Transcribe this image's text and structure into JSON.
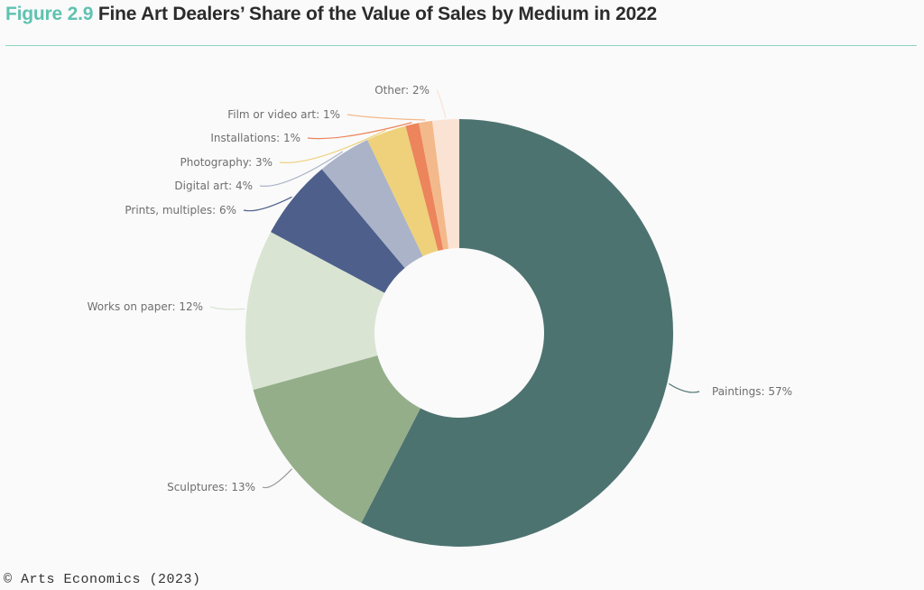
{
  "title": {
    "figure": "Figure 2.9",
    "text": "Fine Art Dealers’ Share of the Value of Sales by Medium in 2022"
  },
  "source": "© Arts Economics (2023)",
  "chart_data": {
    "type": "pie",
    "donut": true,
    "title": "Fine Art Dealers’ Share of the Value of Sales by Medium in 2022",
    "categories": [
      "Paintings",
      "Sculptures",
      "Works on paper",
      "Prints, multiples",
      "Digital art",
      "Photography",
      "Installations",
      "Film or video art",
      "Other"
    ],
    "values": [
      57,
      13,
      12,
      6,
      4,
      3,
      1,
      1,
      2
    ],
    "labels": [
      "Paintings: 57%",
      "Sculptures: 13%",
      "Works on paper: 12%",
      "Prints, multiples: 6%",
      "Digital art: 4%",
      "Photography: 3%",
      "Installations: 1%",
      "Film or video art: 1%",
      "Other: 2%"
    ],
    "colors": [
      "#4d7370",
      "#94ae8a",
      "#d9e5d2",
      "#4d5f8a",
      "#aab3c8",
      "#eed17a",
      "#ec845c",
      "#f3b98a",
      "#fbe3d4"
    ]
  }
}
